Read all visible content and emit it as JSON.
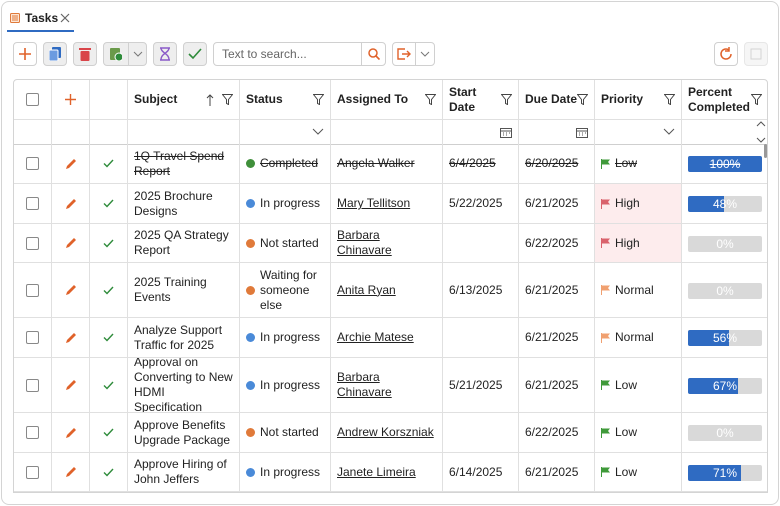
{
  "tab": {
    "title": "Tasks"
  },
  "toolbar": {
    "search_placeholder": "Text to search..."
  },
  "table": {
    "columns": [
      "Subject",
      "Status",
      "Assigned To",
      "Start Date",
      "Due Date",
      "Priority",
      "Percent Completed"
    ],
    "rows": [
      {
        "subject": "1Q Travel Spend Report",
        "status": "Completed",
        "status_color": "#3f8f3a",
        "assigned": "Angela Walker",
        "start": "6/4/2025",
        "due": "6/20/2025",
        "priority": "Low",
        "priority_color": "#3f9a3a",
        "percent": {
          "value": 100,
          "label": "100%"
        }
      },
      {
        "subject": "2025 Brochure Designs",
        "status": "In progress",
        "status_color": "#4a8ad8",
        "assigned": "Mary Tellitson",
        "start": "5/22/2025",
        "due": "6/21/2025",
        "priority": "High",
        "priority_color": "#d9626c",
        "percent": {
          "value": 48,
          "label": "48%"
        }
      },
      {
        "subject": "2025 QA Strategy Report",
        "status": "Not started",
        "status_color": "#e07a3a",
        "assigned": "Barbara Chinavare",
        "start": null,
        "due": "6/22/2025",
        "priority": "High",
        "priority_color": "#d9626c",
        "percent": {
          "value": 0,
          "label": "0%"
        }
      },
      {
        "subject": "2025 Training Events",
        "status": "Waiting for someone else",
        "status_color": "#e07a3a",
        "assigned": "Anita Ryan",
        "start": "6/13/2025",
        "due": "6/21/2025",
        "priority": "Normal",
        "priority_color": "#f0a070",
        "percent": {
          "value": 0,
          "label": "0%"
        }
      },
      {
        "subject": "Analyze Support Traffic for 2025",
        "status": "In progress",
        "status_color": "#4a8ad8",
        "assigned": "Archie Matese",
        "start": null,
        "due": "6/21/2025",
        "priority": "Normal",
        "priority_color": "#f0a070",
        "percent": {
          "value": 56,
          "label": "56%"
        }
      },
      {
        "subject": "Approval on Converting to New HDMI Specification",
        "status": "In progress",
        "status_color": "#4a8ad8",
        "assigned": "Barbara Chinavare",
        "start": "5/21/2025",
        "due": "6/21/2025",
        "priority": "Low",
        "priority_color": "#3f9a3a",
        "percent": {
          "value": 67,
          "label": "67%"
        }
      },
      {
        "subject": "Approve Benefits Upgrade Package",
        "status": "Not started",
        "status_color": "#e07a3a",
        "assigned": "Andrew Korszniak",
        "start": null,
        "due": "6/22/2025",
        "priority": "Low",
        "priority_color": "#3f9a3a",
        "percent": {
          "value": 0,
          "label": "0%"
        }
      },
      {
        "subject": "Approve Hiring of John Jeffers",
        "status": "In progress",
        "status_color": "#4a8ad8",
        "assigned": "Janete Limeira",
        "start": "6/14/2025",
        "due": "6/21/2025",
        "priority": "Low",
        "priority_color": "#3f9a3a",
        "percent": {
          "value": 71,
          "label": "71%"
        }
      }
    ]
  }
}
